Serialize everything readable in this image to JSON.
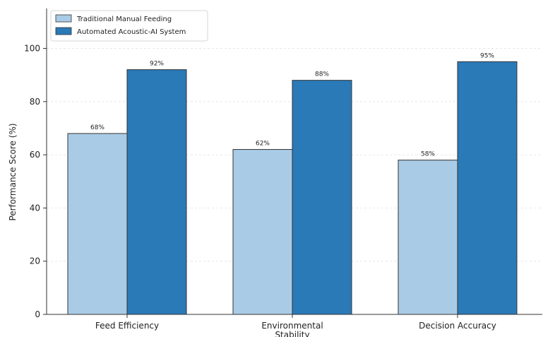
{
  "chart_data": {
    "type": "bar",
    "categories": [
      "Feed Efficiency",
      "Environmental\nStability",
      "Decision Accuracy"
    ],
    "series": [
      {
        "name": "Traditional Manual Feeding",
        "values": [
          68,
          62,
          58
        ],
        "labels": [
          "68%",
          "62%",
          "58%"
        ],
        "color": "#aacbe5"
      },
      {
        "name": "Automated Acoustic-AI System",
        "values": [
          92,
          88,
          95
        ],
        "labels": [
          "92%",
          "88%",
          "95%"
        ],
        "color": "#2a7ab8"
      }
    ],
    "ylabel": "Performance Score (%)",
    "xlabel": "",
    "ylim": [
      0,
      115
    ],
    "yticks": [
      0,
      20,
      40,
      60,
      80,
      100
    ],
    "grid": "horizontal",
    "legend": "top-left"
  }
}
